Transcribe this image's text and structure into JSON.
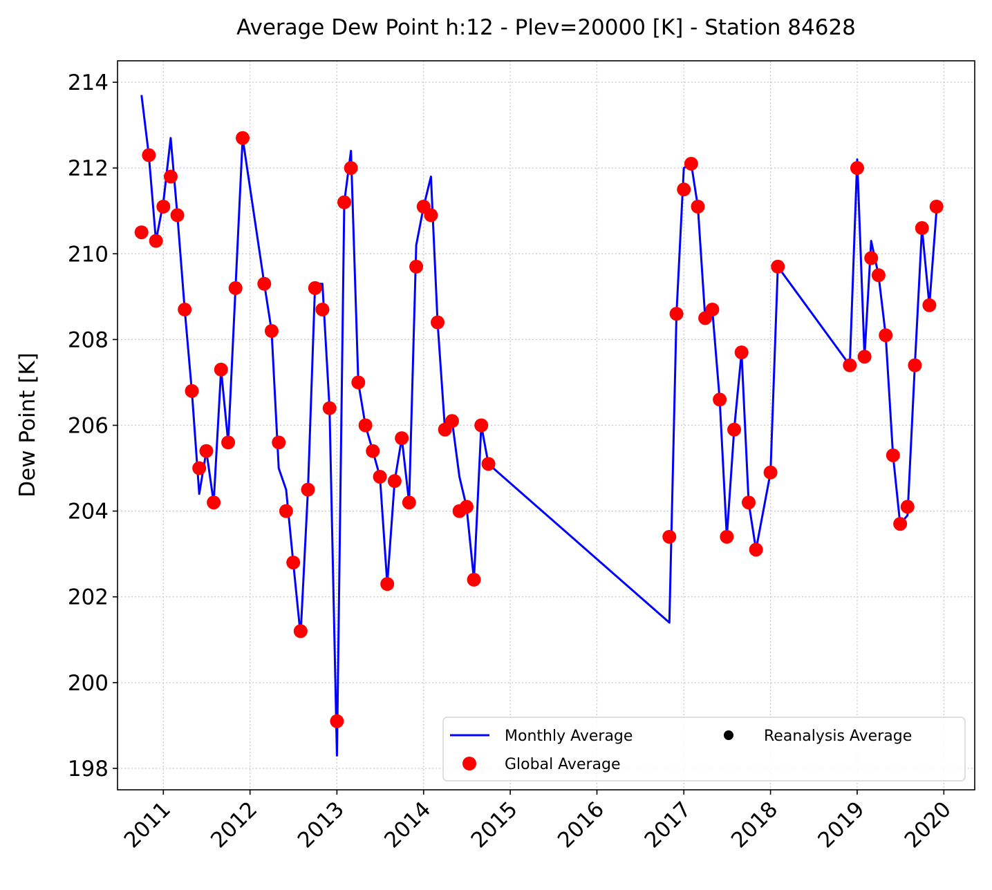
{
  "chart_data": {
    "type": "line",
    "title": "Average Dew Point h:12 - Plev=20000 [K] - Station 84628",
    "xlabel": "",
    "ylabel": "Dew Point [K]",
    "ylim": [
      197.5,
      214.5
    ],
    "xlim": [
      "2010-06-22",
      "2020-05-10"
    ],
    "grid": true,
    "legend_position": "bottom-right",
    "y_ticks": [
      "198",
      "200",
      "202",
      "204",
      "206",
      "208",
      "210",
      "212",
      "214"
    ],
    "x_ticks": [
      "2011",
      "2012",
      "2013",
      "2014",
      "2015",
      "2016",
      "2017",
      "2018",
      "2019",
      "2020"
    ],
    "colors": {
      "monthly": "#0000ff",
      "global": "#ff0000",
      "reanalysis": "#000000"
    },
    "series": [
      {
        "name": "Monthly Average",
        "kind": "line",
        "x": [
          "2010-10-01",
          "2010-11-01",
          "2010-12-01",
          "2011-01-01",
          "2011-02-01",
          "2011-03-01",
          "2011-04-01",
          "2011-05-01",
          "2011-06-01",
          "2011-07-01",
          "2011-08-01",
          "2011-09-01",
          "2011-10-01",
          "2011-11-01",
          "2011-12-01",
          "2012-03-01",
          "2012-04-01",
          "2012-05-01",
          "2012-06-01",
          "2012-07-01",
          "2012-08-01",
          "2012-09-01",
          "2012-10-01",
          "2012-11-01",
          "2012-12-01",
          "2013-01-01",
          "2013-02-01",
          "2013-03-01",
          "2013-04-01",
          "2013-05-01",
          "2013-06-01",
          "2013-07-01",
          "2013-08-01",
          "2013-09-01",
          "2013-10-01",
          "2013-11-01",
          "2013-12-01",
          "2014-01-01",
          "2014-02-01",
          "2014-03-01",
          "2014-04-01",
          "2014-05-01",
          "2014-06-01",
          "2014-07-01",
          "2014-08-01",
          "2014-09-01",
          "2014-10-01",
          "2016-11-01",
          "2016-12-01",
          "2017-01-01",
          "2017-02-01",
          "2017-03-01",
          "2017-04-01",
          "2017-05-01",
          "2017-06-01",
          "2017-07-01",
          "2017-08-01",
          "2017-09-01",
          "2017-10-01",
          "2017-11-01",
          "2018-01-01",
          "2018-02-01",
          "2018-12-01",
          "2019-01-01",
          "2019-02-01",
          "2019-03-01",
          "2019-04-01",
          "2019-05-01",
          "2019-06-01",
          "2019-07-01",
          "2019-08-01",
          "2019-09-01",
          "2019-10-01",
          "2019-11-01",
          "2019-12-01"
        ],
        "values": [
          213.7,
          212.3,
          210.3,
          211.2,
          212.7,
          210.9,
          208.7,
          206.8,
          204.4,
          205.4,
          204.2,
          207.3,
          205.6,
          209.2,
          212.7,
          209.3,
          208.2,
          205.0,
          204.5,
          202.8,
          201.1,
          204.5,
          209.3,
          209.3,
          206.4,
          198.3,
          211.2,
          212.4,
          207.0,
          206.0,
          205.4,
          204.8,
          202.3,
          204.7,
          205.7,
          204.2,
          210.2,
          211.1,
          211.8,
          208.4,
          205.9,
          206.1,
          204.8,
          204.1,
          202.4,
          206.0,
          205.1,
          201.4,
          208.6,
          212.0,
          212.1,
          211.1,
          208.5,
          208.7,
          206.6,
          203.4,
          205.9,
          207.7,
          204.2,
          203.1,
          204.9,
          209.7,
          207.4,
          212.2,
          207.6,
          210.3,
          209.5,
          208.1,
          205.3,
          203.7,
          203.9,
          207.4,
          210.6,
          208.8,
          211.0
        ]
      },
      {
        "name": "Global Average",
        "kind": "scatter",
        "x": [
          "2010-10-01",
          "2010-11-01",
          "2010-12-01",
          "2011-01-01",
          "2011-02-01",
          "2011-03-01",
          "2011-04-01",
          "2011-05-01",
          "2011-06-01",
          "2011-07-01",
          "2011-08-01",
          "2011-09-01",
          "2011-10-01",
          "2011-11-01",
          "2011-12-01",
          "2012-03-01",
          "2012-04-01",
          "2012-05-01",
          "2012-06-01",
          "2012-07-01",
          "2012-08-01",
          "2012-09-01",
          "2012-10-01",
          "2012-11-01",
          "2012-12-01",
          "2013-01-01",
          "2013-02-01",
          "2013-03-01",
          "2013-04-01",
          "2013-05-01",
          "2013-06-01",
          "2013-07-01",
          "2013-08-01",
          "2013-09-01",
          "2013-10-01",
          "2013-11-01",
          "2013-12-01",
          "2014-01-01",
          "2014-02-01",
          "2014-03-01",
          "2014-04-01",
          "2014-05-01",
          "2014-06-01",
          "2014-07-01",
          "2014-08-01",
          "2014-09-01",
          "2014-10-01",
          "2016-11-01",
          "2016-12-01",
          "2017-01-01",
          "2017-02-01",
          "2017-03-01",
          "2017-04-01",
          "2017-05-01",
          "2017-06-01",
          "2017-07-01",
          "2017-08-01",
          "2017-09-01",
          "2017-10-01",
          "2017-11-01",
          "2018-01-01",
          "2018-02-01",
          "2018-12-01",
          "2019-01-01",
          "2019-02-01",
          "2019-03-01",
          "2019-04-01",
          "2019-05-01",
          "2019-06-01",
          "2019-07-01",
          "2019-08-01",
          "2019-09-01",
          "2019-10-01",
          "2019-11-01",
          "2019-12-01"
        ],
        "values": [
          210.5,
          212.3,
          210.3,
          211.1,
          211.8,
          210.9,
          208.7,
          206.8,
          205.0,
          205.4,
          204.2,
          207.3,
          205.6,
          209.2,
          212.7,
          209.3,
          208.2,
          205.6,
          204.0,
          202.8,
          201.2,
          204.5,
          209.2,
          208.7,
          206.4,
          199.1,
          211.2,
          212.0,
          207.0,
          206.0,
          205.4,
          204.8,
          202.3,
          204.7,
          205.7,
          204.2,
          209.7,
          211.1,
          210.9,
          208.4,
          205.9,
          206.1,
          204.0,
          204.1,
          202.4,
          206.0,
          205.1,
          203.4,
          208.6,
          211.5,
          212.1,
          211.1,
          208.5,
          208.7,
          206.6,
          203.4,
          205.9,
          207.7,
          204.2,
          203.1,
          204.9,
          209.7,
          207.4,
          212.0,
          207.6,
          209.9,
          209.5,
          208.1,
          205.3,
          203.7,
          204.1,
          207.4,
          210.6,
          208.8,
          211.1
        ]
      },
      {
        "name": "Reanalysis Average",
        "kind": "scatter",
        "x": [],
        "values": []
      }
    ]
  }
}
